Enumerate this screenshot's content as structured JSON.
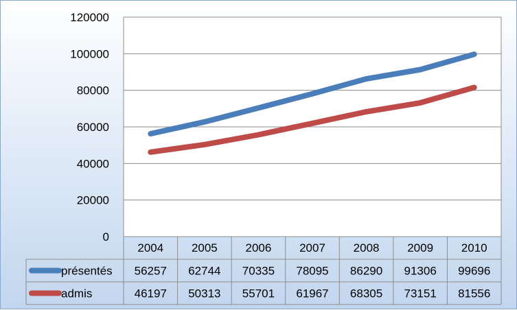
{
  "chart_data": {
    "type": "line",
    "title": "",
    "xlabel": "",
    "ylabel": "",
    "categories": [
      "2004",
      "2005",
      "2006",
      "2007",
      "2008",
      "2009",
      "2010"
    ],
    "ylim": [
      0,
      120000
    ],
    "yticks": [
      "0",
      "20000",
      "40000",
      "60000",
      "80000",
      "100000",
      "120000"
    ],
    "grid": true,
    "legend": "data-table-left",
    "series": [
      {
        "name": "présentés",
        "color": "#4a7ebb",
        "values": [
          56257,
          62744,
          70335,
          78095,
          86290,
          91306,
          99696
        ]
      },
      {
        "name": "admis",
        "color": "#be4b48",
        "values": [
          46197,
          50313,
          55701,
          61967,
          68305,
          73151,
          81556
        ]
      }
    ]
  }
}
